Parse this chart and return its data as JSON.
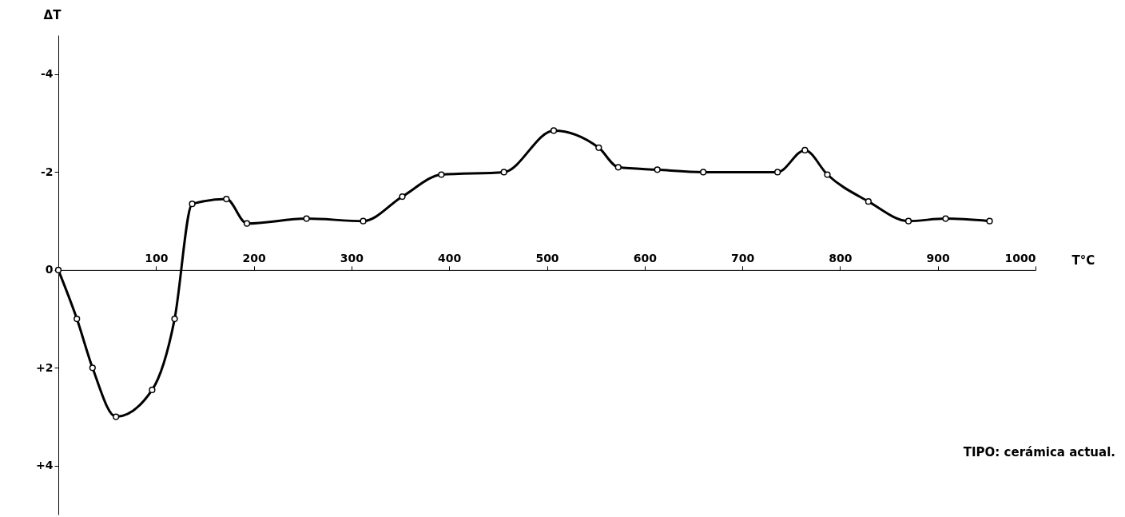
{
  "chart_data": {
    "type": "line",
    "xlabel": "T°C",
    "ylabel": "ΔT",
    "x": [
      0,
      19,
      35,
      59,
      96,
      119,
      137,
      172,
      193,
      254,
      312,
      352,
      392,
      456,
      507,
      553,
      573,
      613,
      660,
      736,
      764,
      787,
      829,
      870,
      908,
      953
    ],
    "series": [
      {
        "color": "#000000",
        "values": [
          0,
          1.0,
          2.0,
          3.0,
          2.45,
          1.0,
          -1.35,
          -1.45,
          -0.95,
          -1.05,
          -1.0,
          -1.5,
          -1.95,
          -2.0,
          -2.85,
          -2.5,
          -2.1,
          -2.05,
          -2.0,
          -2.0,
          -2.45,
          -1.95,
          -1.4,
          -1.0,
          -1.05,
          -1.0
        ]
      }
    ],
    "xlim": [
      0,
      1000
    ],
    "xticks": [
      100,
      200,
      300,
      400,
      500,
      600,
      700,
      800,
      900,
      1000
    ],
    "ylim": [
      5,
      -4.8
    ],
    "yticks": [
      {
        "value": -4,
        "label": "-4"
      },
      {
        "value": -2,
        "label": "-2"
      },
      0,
      {
        "value": 2,
        "label": "+2"
      },
      {
        "value": 4,
        "label": "+4"
      }
    ],
    "grid": false,
    "marker": "circle",
    "line_style": "solid",
    "annotations": [
      "TIPO: cerámica actual."
    ]
  }
}
